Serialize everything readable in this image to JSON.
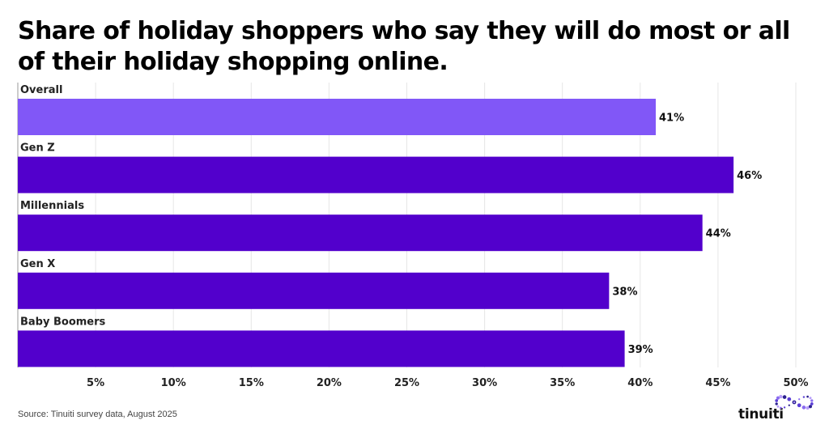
{
  "chart_data": {
    "type": "bar",
    "orientation": "horizontal",
    "title": "Share of holiday shoppers who say they will do most or all of their holiday shopping online.",
    "categories": [
      "Overall",
      "Gen Z",
      "Millennials",
      "Gen X",
      "Baby Boomers"
    ],
    "values": [
      41,
      46,
      44,
      38,
      39
    ],
    "value_labels": [
      "41%",
      "46%",
      "44%",
      "38%",
      "39%"
    ],
    "xlim": [
      0,
      50
    ],
    "x_ticks": [
      5,
      10,
      15,
      20,
      25,
      30,
      35,
      40,
      45,
      50
    ],
    "x_tick_labels": [
      "5%",
      "10%",
      "15%",
      "20%",
      "25%",
      "30%",
      "35%",
      "40%",
      "45%",
      "50%"
    ],
    "grid": true,
    "colors": {
      "highlight": "#8157F7",
      "bar": "#5200CC",
      "grid": "#E6E6E6",
      "axis": "#999999",
      "label": "#222222"
    },
    "bar_color_keys": [
      "highlight",
      "bar",
      "bar",
      "bar",
      "bar"
    ]
  },
  "source": "Source: Tinuiti survey data, August 2025",
  "brand": {
    "name": "tinuiti",
    "logo_icon": "dotted-loop-logo-icon",
    "colors": [
      "#2A1F8F",
      "#5B3FD6",
      "#8A6BF0",
      "#B89EFA"
    ]
  }
}
